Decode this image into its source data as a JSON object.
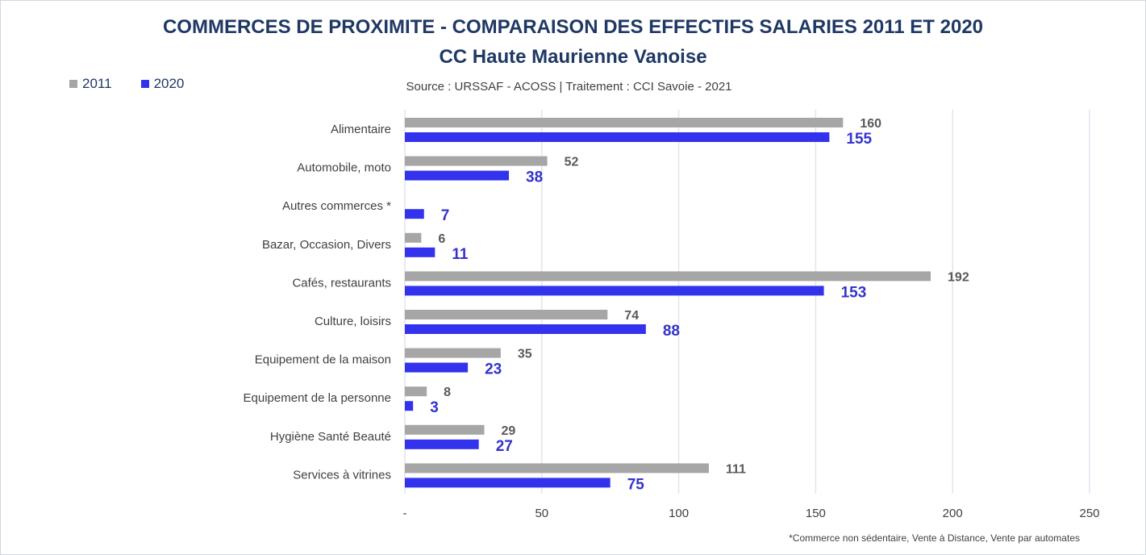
{
  "chart_data": {
    "type": "bar",
    "orientation": "horizontal",
    "title": "COMMERCES DE PROXIMITE - COMPARAISON DES EFFECTIFS SALARIES 2011 ET 2020",
    "subtitle": "CC Haute Maurienne Vanoise",
    "source": "Source  : URSSAF - ACOSS  |  Traitement : CCI Savoie - 2021",
    "footnote": "*Commerce non sédentaire, Vente à Distance, Vente par automates",
    "categories": [
      "Alimentaire",
      "Automobile, moto",
      "Autres commerces *",
      "Bazar, Occasion, Divers",
      "Cafés, restaurants",
      "Culture, loisirs",
      "Equipement de la maison",
      "Equipement de la personne",
      "Hygiène Santé Beauté",
      "Services à vitrines"
    ],
    "series": [
      {
        "name": "2011",
        "color": "#a6a6a6",
        "label_color": "#595959",
        "values": [
          160,
          52,
          null,
          6,
          192,
          74,
          35,
          8,
          29,
          111
        ]
      },
      {
        "name": "2020",
        "color": "#3333ee",
        "label_color": "#3333cc",
        "values": [
          155,
          38,
          7,
          11,
          153,
          88,
          23,
          3,
          27,
          75
        ]
      }
    ],
    "xlim": [
      0,
      250
    ],
    "x_ticks": [
      0,
      50,
      100,
      150,
      200,
      250
    ],
    "x_tick_labels": [
      "-",
      "50",
      "100",
      "150",
      "200",
      "250"
    ],
    "grid": true,
    "legend_position": "top-left"
  }
}
